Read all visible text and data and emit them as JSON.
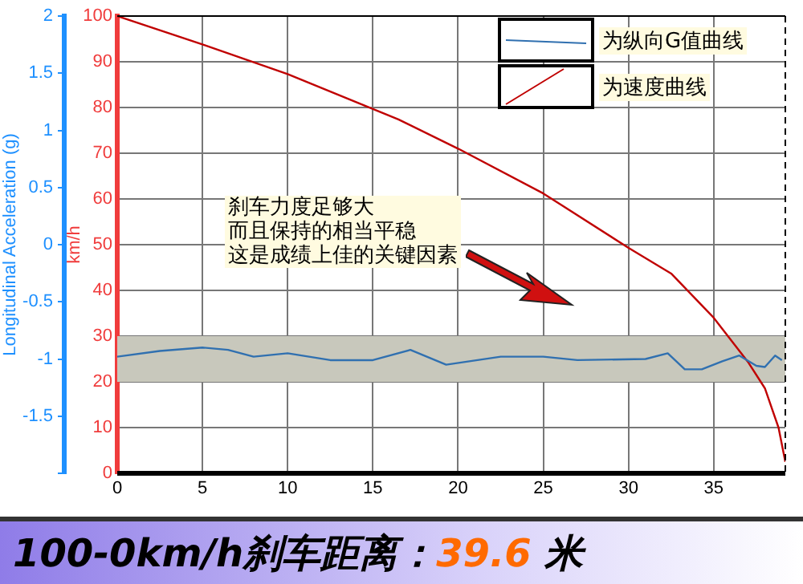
{
  "chart_data": {
    "type": "line",
    "title": "100-0km/h刹车距离：39.6 米",
    "ylabel": "Longitudinal Acceleration (g)",
    "y2label": "km/h",
    "annotations": [
      "刹车力度足够大",
      "而且保持的相当平稳",
      "这是成绩上佳的关键因素"
    ],
    "xlim": [
      0,
      39.2
    ],
    "xticks": [
      0,
      5,
      10,
      15,
      20,
      25,
      30,
      35
    ],
    "ylim": [
      -2,
      2
    ],
    "yticks": [
      {
        "value": -2,
        "label": null
      },
      -1.5,
      -1,
      -0.5,
      0,
      0.5,
      1,
      1.5,
      2
    ],
    "y2lim": [
      0,
      100
    ],
    "y2ticks": [
      0,
      10,
      20,
      30,
      40,
      50,
      60,
      70,
      80,
      90,
      100
    ],
    "grid": true,
    "legend": "top right",
    "marker": "none",
    "line_style": "solid",
    "bands": [
      {
        "axis": "y2",
        "from": 20,
        "to": 30,
        "color": "#c8c8bc"
      }
    ],
    "series": [
      {
        "name": "为纵向G值曲线",
        "color": "#3070b0",
        "x": [
          0,
          2.5,
          5,
          6.5,
          8,
          10,
          12.5,
          15,
          17.2,
          19.3,
          22.5,
          25,
          27,
          31,
          32.3,
          33.3,
          34.3,
          35.5,
          36.5,
          37.5,
          38,
          38.6,
          39
        ],
        "values": [
          -0.98,
          -0.93,
          -0.9,
          -0.92,
          -0.98,
          -0.95,
          -1.01,
          -1.01,
          -0.92,
          -1.05,
          -0.98,
          -0.98,
          -1.01,
          -1.0,
          -0.95,
          -1.09,
          -1.09,
          -1.02,
          -0.97,
          -1.06,
          -1.07,
          -0.97,
          -1.01
        ]
      },
      {
        "name": "为速度曲线",
        "color": "#c00000",
        "axis": "y2",
        "x": [
          0,
          5,
          10,
          16.5,
          20,
          25,
          30,
          32.5,
          35,
          37,
          38,
          38.8,
          39.2
        ],
        "values": [
          100,
          93.8,
          87.3,
          77.4,
          71,
          61.2,
          49.3,
          43.7,
          34,
          24.4,
          18.6,
          10,
          2.5
        ]
      }
    ]
  }
}
